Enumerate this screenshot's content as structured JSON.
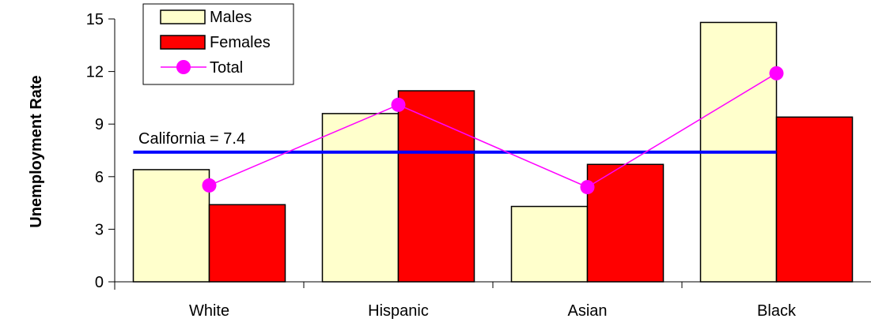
{
  "chart_data": {
    "type": "bar",
    "categories": [
      "White",
      "Hispanic",
      "Asian",
      "Black"
    ],
    "series": [
      {
        "name": "Males",
        "type": "bar",
        "color": "#ffffcc",
        "values": [
          6.4,
          9.6,
          4.3,
          14.8
        ]
      },
      {
        "name": "Females",
        "type": "bar",
        "color": "#ff0000",
        "values": [
          4.4,
          10.9,
          6.7,
          9.4
        ]
      },
      {
        "name": "Total",
        "type": "line",
        "color": "#ff00ff",
        "values": [
          5.5,
          10.1,
          5.4,
          11.9
        ]
      }
    ],
    "reference_line": {
      "label": "California = 7.4",
      "value": 7.4,
      "color": "#0000ff"
    },
    "ylabel": "Unemployment Rate",
    "ylim": [
      0,
      15
    ],
    "yticks": [
      0,
      3,
      6,
      9,
      12,
      15
    ],
    "grid": false,
    "legend_position": "top-left"
  }
}
